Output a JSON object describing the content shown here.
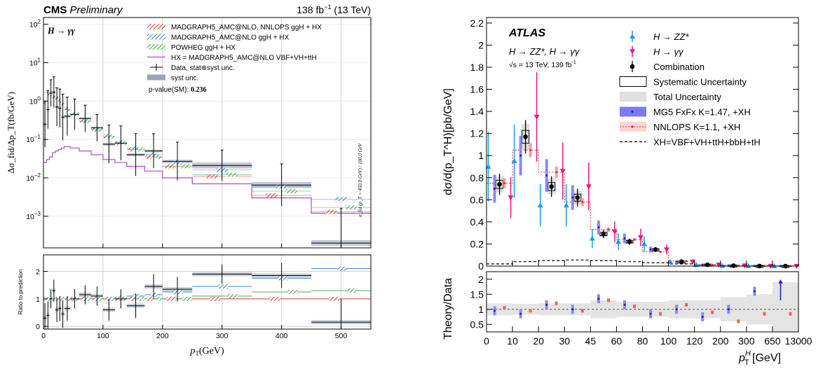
{
  "chart_data": [
    {
      "type": "line",
      "experiment": "CMS",
      "status": "Preliminary",
      "lumi": "138 fb",
      "lumi_sup": "−1",
      "energy": "(13 TeV)",
      "channel": "H → γγ",
      "xlabel": "p",
      "xlabel_sub": "T",
      "xlabel_unit": "(GeV)",
      "ylabel": "Δσ_fid/Δp_T(fb/GeV)",
      "ratio_ylabel": "Ratio to prediction",
      "overflow_label": "σ_fid (p_T > 450.0 GeV) / 100.0 GeV",
      "pvalue_label": "p-value(SM): ",
      "pvalue": "0.236",
      "xlim": [
        0,
        550
      ],
      "ylim": [
        0.00015,
        150
      ],
      "yscale": "log",
      "ratio_ylim": [
        -0.1,
        2.6
      ],
      "x_ticks": [
        0,
        100,
        200,
        300,
        400,
        500
      ],
      "y_ticks": [
        {
          "v": 0.001,
          "base": "10",
          "exp": "−3"
        },
        {
          "v": 0.01,
          "base": "10",
          "exp": "−2"
        },
        {
          "v": 0.1,
          "base": "10",
          "exp": "−1"
        },
        {
          "v": 1,
          "base": "10",
          "exp": "0"
        },
        {
          "v": 10,
          "base": "10",
          "exp": "1"
        },
        {
          "v": 100,
          "base": "10",
          "exp": "2"
        }
      ],
      "ratio_y_ticks": [
        0,
        1,
        2
      ],
      "legend": [
        {
          "label": "MADGRAPH5_AMC@NLO, NNLOPS ggH + HX",
          "color": "#e0403a",
          "kind": "hatch"
        },
        {
          "label": "MADGRAPH5_AMC@NLO ggH + HX",
          "color": "#3a86c8",
          "kind": "hatch"
        },
        {
          "label": "POWHEG ggH + HX",
          "color": "#4caf50",
          "kind": "hatch"
        },
        {
          "label": "HX = MADGRAPH5_AMC@NLO VBF+VH+ttH",
          "color": "#b04cc0",
          "kind": "line"
        },
        {
          "label": "Data, stat⊕syst unc.",
          "color": "#000000",
          "kind": "errorbar"
        },
        {
          "label": "syst unc.",
          "color": "#9aa4b4",
          "kind": "box"
        }
      ],
      "bins": [
        0,
        5,
        10,
        15,
        20,
        25,
        30,
        35,
        45,
        60,
        80,
        100,
        120,
        140,
        170,
        200,
        250,
        350,
        450,
        550
      ],
      "data": [
        0.25,
        0.6,
        1.6,
        1.7,
        0.7,
        0.65,
        0.38,
        0.4,
        0.45,
        0.35,
        0.2,
        0.075,
        0.08,
        0.04,
        0.05,
        0.027,
        0.021,
        0.0065,
        0.0002,
        0.00025
      ],
      "data_err": [
        0.6,
        0.5,
        0.35,
        0.4,
        0.5,
        0.5,
        0.6,
        0.5,
        0.4,
        0.35,
        0.35,
        0.5,
        0.45,
        0.55,
        0.45,
        0.5,
        0.4,
        0.55,
        0.9,
        0.9
      ],
      "ggh_nnlops": [
        0.9,
        1.6,
        1.6,
        1.3,
        1.2,
        1.0,
        0.85,
        0.6,
        0.45,
        0.3,
        0.18,
        0.12,
        0.08,
        0.055,
        0.035,
        0.02,
        0.011,
        0.0035,
        0.0013,
        0.0005
      ],
      "ggh_mg5": [
        0.9,
        1.6,
        1.6,
        1.3,
        1.2,
        1.0,
        0.85,
        0.6,
        0.45,
        0.3,
        0.18,
        0.12,
        0.085,
        0.06,
        0.04,
        0.025,
        0.016,
        0.006,
        0.0028,
        0.0018
      ],
      "ggh_powheg": [
        0.9,
        1.6,
        1.6,
        1.3,
        1.2,
        1.0,
        0.85,
        0.6,
        0.45,
        0.3,
        0.18,
        0.12,
        0.08,
        0.055,
        0.035,
        0.02,
        0.012,
        0.0045,
        0.0017,
        0.001
      ],
      "hx": [
        0.025,
        0.03,
        0.035,
        0.045,
        0.05,
        0.055,
        0.06,
        0.065,
        0.06,
        0.05,
        0.04,
        0.03,
        0.025,
        0.02,
        0.015,
        0.01,
        0.007,
        0.003,
        0.0012,
        0.0003
      ],
      "ratio": [
        0.3,
        0.4,
        1.0,
        1.3,
        0.6,
        0.65,
        0.45,
        0.65,
        1.0,
        1.15,
        1.1,
        0.6,
        1.0,
        0.75,
        1.45,
        1.35,
        1.9,
        1.85,
        0.15,
        0.55
      ],
      "ratio_err": [
        0.55,
        0.5,
        0.35,
        0.4,
        0.45,
        0.45,
        0.5,
        0.45,
        0.35,
        0.35,
        0.35,
        0.4,
        0.35,
        0.45,
        0.45,
        0.45,
        0.35,
        0.45,
        0.85,
        0.9
      ],
      "ratio_mg5": [
        1.0,
        1.0,
        1.0,
        1.0,
        1.0,
        1.0,
        1.0,
        1.0,
        1.0,
        1.0,
        1.0,
        1.0,
        1.05,
        1.1,
        1.15,
        1.25,
        1.45,
        1.75,
        2.1,
        2.7
      ],
      "ratio_powheg": [
        1.0,
        1.0,
        1.0,
        1.0,
        1.0,
        1.0,
        1.0,
        1.0,
        1.0,
        1.0,
        1.0,
        1.0,
        1.0,
        1.0,
        1.0,
        1.0,
        1.1,
        1.25,
        1.3,
        1.4
      ]
    },
    {
      "type": "scatter",
      "experiment": "ATLAS",
      "channel": "H → ZZ*, H → γγ",
      "energy_lumi": "√s = 13 TeV, 139 fb",
      "energy_lumi_sup": "-1",
      "ylabel": "dσ/d(p_T^H)[pb/GeV]",
      "ratio_ylabel": "Theory/Data",
      "xlabel": "p",
      "xlabel_sub": "T",
      "xlabel_sup": "H",
      "xlabel_unit": "[GeV]",
      "ylim": [
        0,
        2.25
      ],
      "y_ticks": [
        "0",
        "0.2",
        "0.4",
        "0.6",
        "0.8",
        "1",
        "1.2",
        "1.4",
        "1.6",
        "1.8",
        "2",
        "2.2"
      ],
      "ratio_ylim": [
        0.25,
        2.25
      ],
      "ratio_y_ticks": [
        "0.5",
        "1",
        "1.5",
        "2"
      ],
      "x_tick_labels": [
        "0",
        "10",
        "20",
        "30",
        "45",
        "60",
        "80",
        "100",
        "120",
        "200",
        "300",
        "650",
        "13000"
      ],
      "legend": [
        {
          "label": "H → ZZ*",
          "color": "#1e9be6",
          "kind": "marker-up"
        },
        {
          "label": "H → γγ",
          "color": "#e6197d",
          "kind": "marker-down"
        },
        {
          "label": "Combination",
          "color": "#000000",
          "kind": "marker-dot"
        },
        {
          "label": "Systematic Uncertainty",
          "color": "#000000",
          "kind": "box-outline"
        },
        {
          "label": "Total Uncertainty",
          "color": "#e0e0e0",
          "kind": "box-filled"
        },
        {
          "label": "MG5 FxFx K=1.47, +XH",
          "color": "#7b7bf0",
          "kind": "band"
        },
        {
          "label": "NNLOPS K=1.1, +XH",
          "color": "#f4a0a0",
          "kind": "band-dotted"
        },
        {
          "label": "XH=VBF+VH+ttH+bbH+tH",
          "color": "#000000",
          "kind": "dashed"
        }
      ],
      "bin_labels": [
        "0-10",
        "10-20",
        "20-30",
        "30-45",
        "45-60",
        "60-80",
        "80-100",
        "100-120",
        "120-200",
        "200-300",
        "300-650",
        "650-13000"
      ],
      "combination": [
        0.74,
        1.17,
        0.72,
        0.62,
        0.29,
        0.22,
        0.15,
        0.04,
        0.012,
        0.004,
        0.0007,
        2e-05
      ],
      "zz": [
        0.9,
        0.95,
        0.55,
        0.55,
        0.25,
        0.22,
        0.2,
        0.04,
        0.01,
        0.003,
        0.0005,
        1e-05
      ],
      "gg": [
        0.62,
        1.35,
        0.86,
        0.72,
        0.31,
        0.26,
        0.15,
        0.04,
        0.012,
        0.004,
        0.0008,
        3e-05
      ],
      "mg5": [
        0.7,
        1.0,
        0.82,
        0.62,
        0.35,
        0.25,
        0.15,
        0.04,
        0.012,
        0.004,
        0.0009,
        4e-05
      ],
      "nnlops": [
        0.75,
        1.05,
        0.85,
        0.58,
        0.33,
        0.24,
        0.13,
        0.045,
        0.011,
        0.0025,
        0.0006,
        2e-05
      ],
      "xh": [
        0.02,
        0.04,
        0.05,
        0.055,
        0.05,
        0.04,
        0.03,
        0.02,
        0.01,
        0.005,
        0.002,
        0.0005
      ],
      "ratio_mg5": [
        0.95,
        0.85,
        1.15,
        1.0,
        1.35,
        1.15,
        0.85,
        1.0,
        0.75,
        1.0,
        1.6,
        1.8
      ],
      "ratio_nnlops": [
        1.05,
        0.95,
        1.2,
        0.95,
        1.3,
        1.1,
        0.85,
        1.15,
        0.9,
        0.6,
        0.85,
        0.85
      ],
      "ratio_total_unc": [
        0.2,
        0.18,
        0.2,
        0.2,
        0.3,
        0.25,
        0.25,
        0.3,
        0.3,
        0.4,
        0.5,
        0.9
      ]
    }
  ]
}
